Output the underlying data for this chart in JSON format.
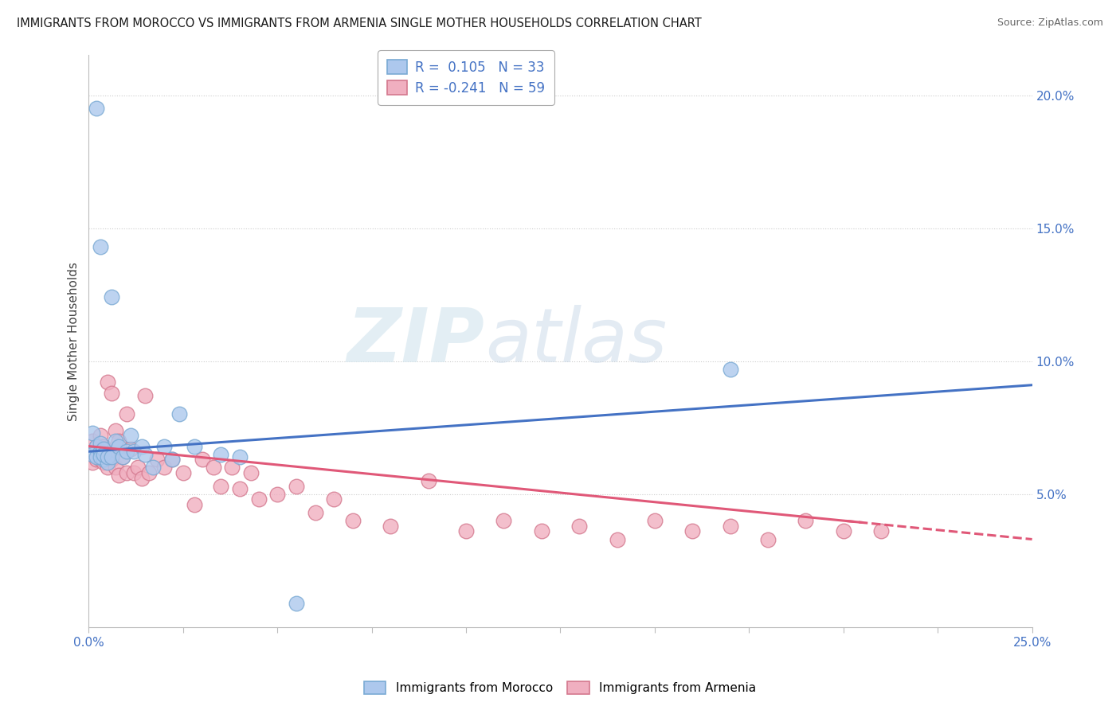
{
  "title": "IMMIGRANTS FROM MOROCCO VS IMMIGRANTS FROM ARMENIA SINGLE MOTHER HOUSEHOLDS CORRELATION CHART",
  "source": "Source: ZipAtlas.com",
  "ylabel": "Single Mother Households",
  "xlim": [
    0.0,
    0.25
  ],
  "ylim": [
    0.0,
    0.215
  ],
  "xticks": [
    0.0,
    0.025,
    0.05,
    0.075,
    0.1,
    0.125,
    0.15,
    0.175,
    0.2,
    0.225,
    0.25
  ],
  "yticks_right": [
    0.0,
    0.05,
    0.1,
    0.15,
    0.2
  ],
  "ytick_labels_right": [
    "",
    "5.0%",
    "10.0%",
    "15.0%",
    "20.0%"
  ],
  "xtick_labels": [
    "0.0%",
    "",
    "",
    "",
    "",
    "",
    "",
    "",
    "",
    "",
    "25.0%"
  ],
  "morocco_color": "#adc8ed",
  "armenia_color": "#f0afc0",
  "morocco_edge": "#7aaad4",
  "armenia_edge": "#d4788e",
  "trend_morocco_color": "#4472c4",
  "trend_armenia_color": "#e05878",
  "R_morocco": 0.105,
  "N_morocco": 33,
  "R_armenia": -0.241,
  "N_armenia": 59,
  "morocco_x": [
    0.001,
    0.002,
    0.001,
    0.002,
    0.003,
    0.003,
    0.004,
    0.003,
    0.004,
    0.005,
    0.004,
    0.005,
    0.006,
    0.006,
    0.007,
    0.008,
    0.009,
    0.01,
    0.011,
    0.012,
    0.014,
    0.015,
    0.017,
    0.02,
    0.022,
    0.024,
    0.028,
    0.035,
    0.04,
    0.17,
    0.002,
    0.003,
    0.055
  ],
  "morocco_y": [
    0.073,
    0.068,
    0.065,
    0.064,
    0.066,
    0.069,
    0.063,
    0.064,
    0.067,
    0.062,
    0.065,
    0.064,
    0.064,
    0.124,
    0.07,
    0.068,
    0.064,
    0.066,
    0.072,
    0.066,
    0.068,
    0.065,
    0.06,
    0.068,
    0.063,
    0.08,
    0.068,
    0.065,
    0.064,
    0.097,
    0.195,
    0.143,
    0.009
  ],
  "armenia_x": [
    0.001,
    0.001,
    0.002,
    0.002,
    0.003,
    0.003,
    0.003,
    0.004,
    0.004,
    0.004,
    0.005,
    0.005,
    0.005,
    0.006,
    0.006,
    0.007,
    0.007,
    0.008,
    0.008,
    0.009,
    0.01,
    0.01,
    0.011,
    0.012,
    0.013,
    0.014,
    0.015,
    0.016,
    0.018,
    0.02,
    0.022,
    0.025,
    0.028,
    0.03,
    0.033,
    0.035,
    0.038,
    0.04,
    0.043,
    0.045,
    0.05,
    0.055,
    0.06,
    0.065,
    0.07,
    0.08,
    0.09,
    0.1,
    0.11,
    0.12,
    0.13,
    0.14,
    0.15,
    0.16,
    0.17,
    0.18,
    0.19,
    0.2,
    0.21
  ],
  "armenia_y": [
    0.07,
    0.062,
    0.068,
    0.063,
    0.068,
    0.063,
    0.072,
    0.065,
    0.062,
    0.068,
    0.06,
    0.065,
    0.092,
    0.063,
    0.088,
    0.06,
    0.074,
    0.057,
    0.07,
    0.064,
    0.058,
    0.08,
    0.067,
    0.058,
    0.06,
    0.056,
    0.087,
    0.058,
    0.063,
    0.06,
    0.063,
    0.058,
    0.046,
    0.063,
    0.06,
    0.053,
    0.06,
    0.052,
    0.058,
    0.048,
    0.05,
    0.053,
    0.043,
    0.048,
    0.04,
    0.038,
    0.055,
    0.036,
    0.04,
    0.036,
    0.038,
    0.033,
    0.04,
    0.036,
    0.038,
    0.033,
    0.04,
    0.036,
    0.036
  ],
  "watermark_zip": "ZIP",
  "watermark_atlas": "atlas",
  "background_color": "#ffffff",
  "grid_color": "#cccccc"
}
